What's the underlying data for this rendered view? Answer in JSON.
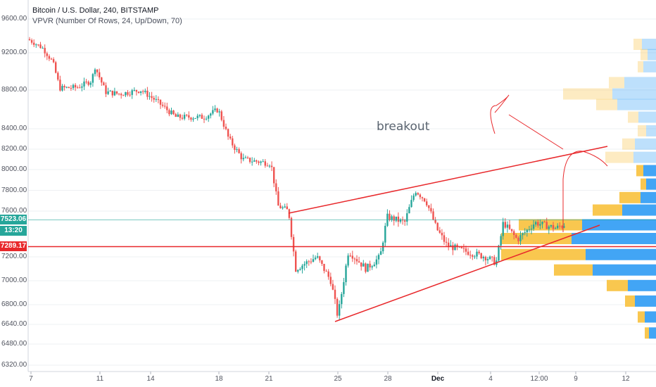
{
  "legend": {
    "symbol": "Bitcoin / U.S. Dollar, 240, BITSTAMP",
    "indicator": "VPVR (Number Of Rows, 24, Up/Down, 70)"
  },
  "price_axis": [
    "9600.00",
    "9200.00",
    "8800.00",
    "8400.00",
    "8200.00",
    "8000.00",
    "7800.00",
    "7600.00",
    "7200.00",
    "7000.00",
    "6800.00",
    "6640.00",
    "6480.00",
    "6320.00"
  ],
  "time_axis": [
    {
      "label": "7",
      "bold": false
    },
    {
      "label": "11",
      "bold": false
    },
    {
      "label": "14",
      "bold": false
    },
    {
      "label": "18",
      "bold": false
    },
    {
      "label": "21",
      "bold": false
    },
    {
      "label": "25",
      "bold": false
    },
    {
      "label": "28",
      "bold": false
    },
    {
      "label": "Dec",
      "bold": true
    },
    {
      "label": "4",
      "bold": false
    },
    {
      "label": "12:00",
      "bold": false
    },
    {
      "label": "9",
      "bold": false
    },
    {
      "label": "12",
      "bold": false
    }
  ],
  "tags": {
    "last_price": "7523.06",
    "countdown": "13:20",
    "horizontal_line": "7289.17"
  },
  "annotation": "breakout",
  "colors": {
    "up": "#26a69a",
    "down": "#ef5350",
    "drawing": "#e8282b",
    "vp_up": "#42a5f5",
    "vp_down": "#f9c74f"
  },
  "chart_data": {
    "type": "candlestick",
    "x_range_labels": [
      "7",
      "11",
      "14",
      "18",
      "21",
      "25",
      "28",
      "Dec",
      "4",
      "12:00",
      "9",
      "12"
    ],
    "y_range": [
      6320,
      9600
    ],
    "lines": {
      "last_price": 7523.06,
      "horizontal": 7289.17
    }
  }
}
